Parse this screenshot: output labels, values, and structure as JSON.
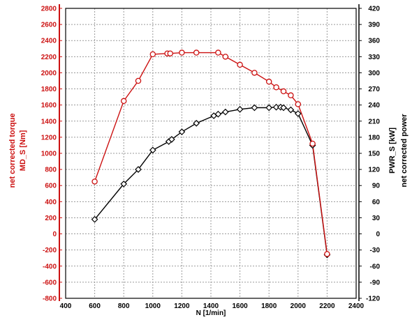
{
  "chart_data": {
    "type": "line",
    "xlabel": "N [1/min]",
    "x_range": [
      400,
      2400
    ],
    "x_ticks": [
      400,
      600,
      800,
      1000,
      1200,
      1400,
      1600,
      1800,
      2000,
      2200,
      2400
    ],
    "y_left": {
      "labels": [
        "net corrected torque",
        "MD_S [Nm]"
      ],
      "range": [
        -800,
        2800
      ],
      "ticks": [
        -800,
        -600,
        -400,
        -200,
        0,
        200,
        400,
        600,
        800,
        1000,
        1200,
        1400,
        1600,
        1800,
        2000,
        2200,
        2400,
        2600,
        2800
      ],
      "color": "#cc1111"
    },
    "y_right": {
      "labels": [
        "PWR_S [kW]",
        "net corrected power"
      ],
      "range": [
        -120,
        420
      ],
      "ticks": [
        -120,
        -90,
        -60,
        -30,
        0,
        30,
        60,
        90,
        120,
        150,
        180,
        210,
        240,
        270,
        300,
        330,
        360,
        390,
        420
      ],
      "color": "#000000"
    },
    "grid": true,
    "series": [
      {
        "axis": "left",
        "color": "#cc1111",
        "marker": "circle",
        "x": [
          600,
          800,
          900,
          1000,
          1100,
          1120,
          1200,
          1300,
          1450,
          1500,
          1600,
          1700,
          1800,
          1850,
          1900,
          1950,
          2000,
          2100,
          2200
        ],
        "y": [
          650,
          1650,
          1900,
          2230,
          2240,
          2240,
          2250,
          2250,
          2250,
          2200,
          2100,
          2000,
          1890,
          1820,
          1770,
          1720,
          1610,
          1120,
          -250
        ]
      },
      {
        "axis": "right",
        "color": "#000000",
        "marker": "diamond",
        "x": [
          600,
          800,
          900,
          1000,
          1110,
          1130,
          1200,
          1300,
          1420,
          1450,
          1500,
          1600,
          1700,
          1800,
          1850,
          1880,
          1900,
          1950,
          2000,
          2100,
          2200
        ],
        "y": [
          27,
          93,
          120,
          156,
          172,
          176,
          190,
          206,
          220,
          223,
          227,
          232,
          235,
          235,
          236,
          236,
          235,
          231,
          224,
          165,
          -39
        ]
      }
    ]
  }
}
